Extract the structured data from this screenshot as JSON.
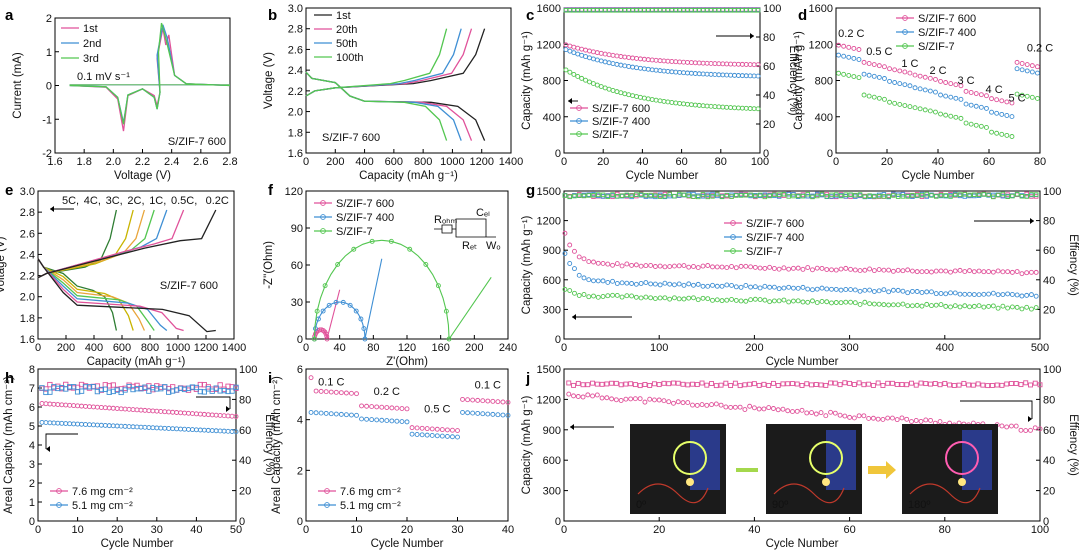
{
  "colors": {
    "pink": "#e0529a",
    "blue": "#3f8fd4",
    "green": "#53c650",
    "black": "#222222",
    "dkgreen": "#2e7d32",
    "orange": "#e8a53a",
    "olive": "#c8b400",
    "yellow": "#e6c800",
    "photo_bg": "#1b1b1b",
    "arrow_green": "#a4d84c",
    "arrow_yellow": "#f0c63a"
  },
  "chart_data": [
    {
      "id": "a",
      "label": "a",
      "type": "line",
      "xlabel": "Voltage (V)",
      "ylabel": "Current (mA)",
      "xlim": [
        1.6,
        2.8
      ],
      "ylim": [
        -2,
        2
      ],
      "xticks": [
        "1.6",
        "1.8",
        "2.0",
        "2.2",
        "2.4",
        "2.6",
        "2.8"
      ],
      "yticks": [
        "-2",
        "-1",
        "0",
        "1",
        "2"
      ],
      "annotations": [
        "0.1 mV s⁻¹",
        "S/ZIF-7 600"
      ],
      "series": [
        {
          "name": "1st",
          "color": "pink",
          "points": [
            [
              1.7,
              0
            ],
            [
              1.95,
              -0.05
            ],
            [
              2.03,
              -0.4
            ],
            [
              2.07,
              -1.35
            ],
            [
              2.1,
              -0.3
            ],
            [
              2.2,
              -0.1
            ],
            [
              2.28,
              -0.3
            ],
            [
              2.3,
              -0.6
            ],
            [
              2.32,
              -0.2
            ],
            [
              2.3,
              0.8
            ],
            [
              2.34,
              1.7
            ],
            [
              2.36,
              1.2
            ],
            [
              2.38,
              1.5
            ],
            [
              2.42,
              0.3
            ],
            [
              2.5,
              0.05
            ],
            [
              2.8,
              0
            ]
          ]
        },
        {
          "name": "2nd",
          "color": "blue",
          "points": [
            [
              1.7,
              0
            ],
            [
              1.95,
              -0.04
            ],
            [
              2.03,
              -0.35
            ],
            [
              2.07,
              -1.1
            ],
            [
              2.1,
              -0.28
            ],
            [
              2.2,
              -0.1
            ],
            [
              2.28,
              -0.35
            ],
            [
              2.3,
              -0.7
            ],
            [
              2.32,
              -0.2
            ],
            [
              2.3,
              0.9
            ],
            [
              2.34,
              1.8
            ],
            [
              2.37,
              1.4
            ],
            [
              2.42,
              0.3
            ],
            [
              2.5,
              0.05
            ],
            [
              2.8,
              0
            ]
          ]
        },
        {
          "name": "3rd",
          "color": "green",
          "points": [
            [
              1.7,
              0
            ],
            [
              1.95,
              -0.04
            ],
            [
              2.03,
              -0.35
            ],
            [
              2.07,
              -1.15
            ],
            [
              2.1,
              -0.28
            ],
            [
              2.2,
              -0.1
            ],
            [
              2.28,
              -0.35
            ],
            [
              2.3,
              -0.7
            ],
            [
              2.32,
              -0.2
            ],
            [
              2.31,
              1.0
            ],
            [
              2.33,
              1.85
            ],
            [
              2.36,
              1.4
            ],
            [
              2.42,
              0.3
            ],
            [
              2.5,
              0.05
            ],
            [
              2.8,
              0
            ]
          ]
        }
      ]
    },
    {
      "id": "b",
      "label": "b",
      "type": "line",
      "xlabel": "Capacity (mAh g⁻¹)",
      "ylabel": "Voltage (V)",
      "xlim": [
        0,
        1400
      ],
      "ylim": [
        1.6,
        3.0
      ],
      "xticks": [
        "0",
        "200",
        "400",
        "600",
        "800",
        "1000",
        "1200",
        "1400"
      ],
      "yticks": [
        "1.6",
        "1.8",
        "2.0",
        "2.2",
        "2.4",
        "2.6",
        "2.8",
        "3.0"
      ],
      "annotations": [
        "S/ZIF-7 600"
      ],
      "series": [
        {
          "name": "1st",
          "color": "black",
          "discharge_end": 1220,
          "charge_end": 1220
        },
        {
          "name": "20th",
          "color": "pink",
          "discharge_end": 1130,
          "charge_end": 1130
        },
        {
          "name": "50th",
          "color": "blue",
          "discharge_end": 1060,
          "charge_end": 1060
        },
        {
          "name": "100th",
          "color": "green",
          "discharge_end": 960,
          "charge_end": 960
        }
      ]
    },
    {
      "id": "c",
      "label": "c",
      "type": "scatter",
      "xlabel": "Cycle Number",
      "ylabel": "Capacity (mAh g⁻¹)",
      "y2label": "Efficiency (%)",
      "xlim": [
        0,
        100
      ],
      "ylim": [
        0,
        1600
      ],
      "y2lim": [
        0,
        100
      ],
      "xticks": [
        "0",
        "20",
        "40",
        "60",
        "80",
        "100"
      ],
      "yticks": [
        "0",
        "400",
        "800",
        "1200",
        "1600"
      ],
      "y2ticks": [
        "0",
        "20",
        "40",
        "60",
        "80",
        "100"
      ],
      "series": [
        {
          "name": "S/ZIF-7 600",
          "color": "pink",
          "start": 1200,
          "end": 960
        },
        {
          "name": "S/ZIF-7 400",
          "color": "blue",
          "start": 1150,
          "end": 830
        },
        {
          "name": "S/ZIF-7",
          "color": "green",
          "start": 930,
          "end": 460
        }
      ],
      "efficiency": 99
    },
    {
      "id": "d",
      "label": "d",
      "type": "scatter",
      "xlabel": "Cycle Number",
      "ylabel": "Capacity (mAh g⁻¹)",
      "xlim": [
        0,
        80
      ],
      "ylim": [
        0,
        1600
      ],
      "xticks": [
        "0",
        "20",
        "40",
        "60",
        "80"
      ],
      "yticks": [
        "0",
        "400",
        "800",
        "1200",
        "1600"
      ],
      "rates": [
        "0.2 C",
        "0.5 C",
        "1 C",
        "2 C",
        "3 C",
        "4 C",
        "5 C",
        "0.2 C"
      ],
      "series": [
        {
          "name": "S/ZIF-7 600",
          "color": "pink",
          "levels": [
            1190,
            1000,
            930,
            860,
            790,
            680,
            600,
            1000
          ]
        },
        {
          "name": "S/ZIF-7 400",
          "color": "blue",
          "levels": [
            1080,
            870,
            790,
            720,
            640,
            540,
            450,
            930
          ]
        },
        {
          "name": "S/ZIF-7",
          "color": "green",
          "levels": [
            880,
            640,
            560,
            500,
            430,
            330,
            230,
            650
          ]
        }
      ]
    },
    {
      "id": "e",
      "label": "e",
      "type": "line",
      "xlabel": "Capacity (mAh g⁻¹)",
      "ylabel": "Voltage (V)",
      "xlim": [
        0,
        1400
      ],
      "ylim": [
        1.6,
        3.0
      ],
      "xticks": [
        "0",
        "200",
        "400",
        "600",
        "800",
        "1000",
        "1200",
        "1400"
      ],
      "yticks": [
        "1.6",
        "1.8",
        "2.0",
        "2.2",
        "2.4",
        "2.6",
        "2.8",
        "3.0"
      ],
      "annotations": [
        "S/ZIF-7 600"
      ],
      "series": [
        {
          "name": "5C",
          "color": "dkgreen",
          "cap": 560
        },
        {
          "name": "4C",
          "color": "olive",
          "cap": 680
        },
        {
          "name": "3C",
          "color": "orange",
          "cap": 760
        },
        {
          "name": "2C",
          "color": "green",
          "cap": 830
        },
        {
          "name": "1C",
          "color": "blue",
          "cap": 920
        },
        {
          "name": "0.5C",
          "color": "pink",
          "cap": 1040
        },
        {
          "name": "0.2C",
          "color": "black",
          "cap": 1270
        }
      ]
    },
    {
      "id": "f",
      "label": "f",
      "type": "line",
      "xlabel": "Z'(Ohm)",
      "ylabel": "-Z''(Ohm)",
      "xlim": [
        0,
        240
      ],
      "ylim": [
        0,
        120
      ],
      "xticks": [
        "0",
        "40",
        "80",
        "120",
        "160",
        "200",
        "240"
      ],
      "yticks": [
        "0",
        "30",
        "60",
        "90",
        "120"
      ],
      "circuit": {
        "r_ohm": "Rₒₕₘ",
        "c_dl": "Cₑₗ",
        "r_ct": "Rₑₜ",
        "w": "Wₒ"
      },
      "series": [
        {
          "name": "S/ZIF-7 600",
          "color": "pink",
          "r0": 10,
          "rct": 15,
          "tail": [
            [
              40,
              40
            ]
          ]
        },
        {
          "name": "S/ZIF-7 400",
          "color": "blue",
          "r0": 10,
          "rct": 60,
          "tail": [
            [
              90,
              65
            ]
          ]
        },
        {
          "name": "S/ZIF-7",
          "color": "green",
          "r0": 10,
          "rct": 160,
          "tail": [
            [
              220,
              50
            ]
          ]
        }
      ]
    },
    {
      "id": "g",
      "label": "g",
      "type": "scatter",
      "xlabel": "Cycle Number",
      "ylabel": "Capacity (mAh g⁻¹)",
      "y2label": "Effiency (%)",
      "xlim": [
        0,
        500
      ],
      "ylim": [
        0,
        1500
      ],
      "y2lim": [
        0,
        100
      ],
      "xticks": [
        "0",
        "100",
        "200",
        "300",
        "400",
        "500"
      ],
      "yticks": [
        "0",
        "300",
        "600",
        "900",
        "1200",
        "1500"
      ],
      "y2ticks": [
        "20",
        "40",
        "60",
        "80",
        "100"
      ],
      "series": [
        {
          "name": "S/ZIF-7 600",
          "color": "pink",
          "start": 1100,
          "mid": 750,
          "end": 670
        },
        {
          "name": "S/ZIF-7 400",
          "color": "blue",
          "start": 900,
          "mid": 570,
          "end": 440
        },
        {
          "name": "S/ZIF-7",
          "color": "green",
          "start": 520,
          "mid": 430,
          "end": 310
        }
      ],
      "efficiency": 97
    },
    {
      "id": "h",
      "label": "h",
      "type": "scatter",
      "xlabel": "Cycle Number",
      "ylabel": "Areal Capacity (mAh cm⁻²)",
      "y2label": "Effiency (%)",
      "xlim": [
        0,
        50
      ],
      "ylim": [
        0,
        8
      ],
      "y2lim": [
        0,
        100
      ],
      "xticks": [
        "0",
        "10",
        "20",
        "30",
        "40",
        "50"
      ],
      "yticks": [
        "0",
        "1",
        "2",
        "3",
        "4",
        "5",
        "6",
        "7",
        "8"
      ],
      "y2ticks": [
        "0",
        "20",
        "40",
        "60",
        "80",
        "100"
      ],
      "series": [
        {
          "name": "7.6 mg cm⁻²",
          "color": "pink",
          "start": 6.2,
          "end": 5.5
        },
        {
          "name": "5.1 mg cm⁻²",
          "color": "blue",
          "start": 5.2,
          "end": 4.7
        }
      ],
      "efficiency": 88
    },
    {
      "id": "i",
      "label": "i",
      "type": "scatter",
      "xlabel": "Cycle Number",
      "ylabel": "Areal Capacity (mAh cm⁻²)",
      "xlim": [
        0,
        40
      ],
      "ylim": [
        0,
        7
      ],
      "xticks": [
        "0",
        "10",
        "20",
        "30",
        "40"
      ],
      "yticks": [
        "0",
        "2",
        "4",
        "6"
      ],
      "rates": [
        "0.1 C",
        "0.2 C",
        "0.5 C",
        "0.1 C"
      ],
      "series": [
        {
          "name": "7.6 mg cm⁻²",
          "color": "pink",
          "levels": [
            6.0,
            5.3,
            4.3,
            5.6
          ]
        },
        {
          "name": "5.1 mg cm⁻²",
          "color": "blue",
          "levels": [
            5.0,
            4.7,
            4.0,
            5.0
          ]
        }
      ]
    },
    {
      "id": "j",
      "label": "j",
      "type": "scatter",
      "xlabel": "Cycle Number",
      "ylabel": "Capacity (mAh g⁻¹)",
      "y2label": "Effiency (%)",
      "xlim": [
        0,
        100
      ],
      "ylim": [
        0,
        1500
      ],
      "y2lim": [
        0,
        100
      ],
      "xticks": [
        "0",
        "20",
        "40",
        "60",
        "80",
        "100"
      ],
      "yticks": [
        "0",
        "300",
        "600",
        "900",
        "1200",
        "1500"
      ],
      "y2ticks": [
        "0",
        "20",
        "40",
        "60",
        "80",
        "100"
      ],
      "series": [
        {
          "name": "capacity",
          "color": "pink",
          "start": 1250,
          "end": 900
        },
        {
          "name": "efficiency",
          "color": "pink",
          "value": 90
        }
      ],
      "photos": [
        "0º",
        "90º",
        "180º"
      ]
    }
  ]
}
